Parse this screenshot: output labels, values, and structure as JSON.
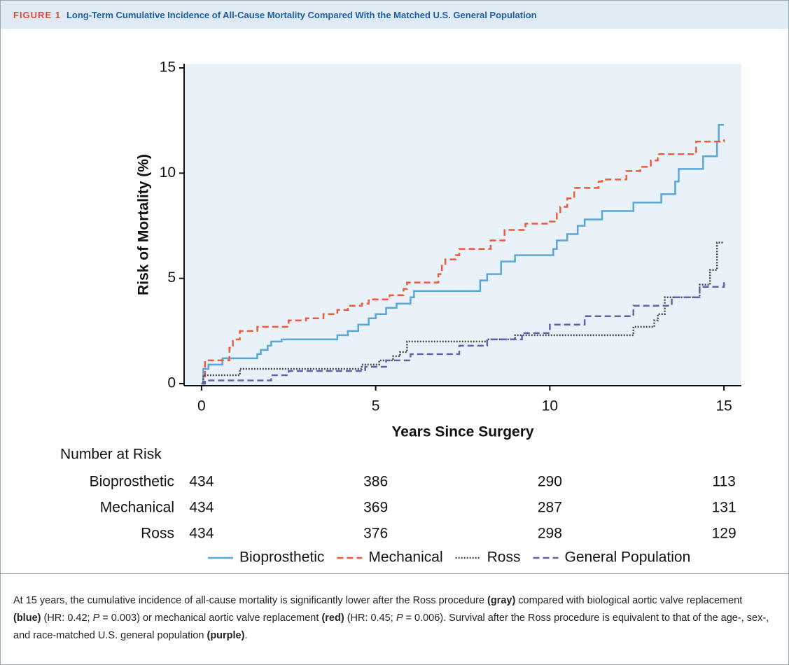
{
  "header": {
    "label": "FIGURE 1",
    "title": "Long-Term Cumulative Incidence of All-Cause Mortality Compared With the Matched U.S. General Population"
  },
  "chart_data": {
    "type": "step",
    "x_label": "Years Since Surgery",
    "y_label": "Risk of Mortality (%)",
    "xlim": [
      -0.5,
      15.5
    ],
    "ylim": [
      -0.1,
      15.2
    ],
    "xticks": [
      0,
      5,
      10,
      15
    ],
    "yticks": [
      0,
      5,
      10,
      15
    ],
    "background": "#e9f1f9",
    "series": [
      {
        "name": "Bioprosthetic",
        "color": "#5aa6d6",
        "line_style": "solid",
        "x": [
          0,
          0.05,
          0.2,
          0.6,
          1.6,
          1.7,
          1.9,
          2.0,
          2.3,
          3.9,
          4.2,
          4.5,
          4.8,
          5.0,
          5.3,
          5.6,
          6.0,
          6.1,
          8.0,
          8.2,
          8.6,
          9.0,
          10.1,
          10.2,
          10.5,
          10.8,
          11.0,
          11.5,
          12.4,
          13.2,
          13.6,
          13.7,
          14.4,
          14.8,
          14.85,
          15.0
        ],
        "values": [
          0,
          0.7,
          0.9,
          1.2,
          1.4,
          1.6,
          1.8,
          2.0,
          2.1,
          2.3,
          2.5,
          2.8,
          3.1,
          3.3,
          3.6,
          3.8,
          4.1,
          4.4,
          4.9,
          5.2,
          5.8,
          6.1,
          6.4,
          6.8,
          7.1,
          7.5,
          7.8,
          8.2,
          8.6,
          9.0,
          9.6,
          10.2,
          10.8,
          11.5,
          12.3,
          12.3
        ]
      },
      {
        "name": "Mechanical",
        "color": "#ef5a3c",
        "line_style": "dashed",
        "x": [
          0,
          0.1,
          0.8,
          0.9,
          1.1,
          1.6,
          2.5,
          3.0,
          3.5,
          3.9,
          4.2,
          4.6,
          4.8,
          5.4,
          5.8,
          5.9,
          6.8,
          6.9,
          7.0,
          7.3,
          7.4,
          8.3,
          8.7,
          9.3,
          10.0,
          10.2,
          10.3,
          10.5,
          10.7,
          11.4,
          11.5,
          12.2,
          12.6,
          12.9,
          13.1,
          14.2,
          15.0
        ],
        "values": [
          0,
          1.1,
          1.7,
          2.1,
          2.5,
          2.7,
          3.0,
          3.1,
          3.3,
          3.5,
          3.7,
          3.8,
          4.0,
          4.2,
          4.5,
          4.8,
          5.2,
          5.6,
          5.9,
          6.1,
          6.4,
          6.8,
          7.3,
          7.6,
          7.7,
          8.1,
          8.4,
          8.8,
          9.3,
          9.6,
          9.7,
          10.1,
          10.3,
          10.6,
          10.9,
          11.5,
          11.6
        ]
      },
      {
        "name": "Ross",
        "color": "#4a4a4a",
        "line_style": "dotted",
        "x": [
          0,
          0.05,
          1.1,
          4.6,
          5.1,
          5.5,
          5.7,
          5.9,
          8.2,
          9.0,
          12.4,
          13.0,
          13.1,
          13.3,
          14.3,
          14.6,
          14.8,
          15.0
        ],
        "values": [
          0,
          0.4,
          0.7,
          0.9,
          1.1,
          1.3,
          1.5,
          2.0,
          2.1,
          2.3,
          2.7,
          3.0,
          3.3,
          4.1,
          4.7,
          5.4,
          6.7,
          6.7
        ]
      },
      {
        "name": "General Population",
        "color": "#6a5fa8",
        "line_style": "dashed",
        "x": [
          0,
          0.1,
          2.0,
          2.5,
          4.7,
          5.3,
          6.0,
          7.4,
          8.2,
          9.2,
          10.0,
          11.0,
          12.4,
          13.5,
          14.3,
          15.0
        ],
        "values": [
          0,
          0.15,
          0.4,
          0.6,
          0.8,
          1.1,
          1.4,
          1.8,
          2.1,
          2.4,
          2.8,
          3.2,
          3.7,
          4.1,
          4.6,
          4.9
        ]
      }
    ]
  },
  "risk_table": {
    "title": "Number at Risk",
    "rows": [
      {
        "name": "Bioprosthetic",
        "values": [
          434,
          386,
          290,
          113
        ]
      },
      {
        "name": "Mechanical",
        "values": [
          434,
          369,
          287,
          131
        ]
      },
      {
        "name": "Ross",
        "values": [
          434,
          376,
          298,
          129
        ]
      }
    ]
  },
  "caption": [
    "At 15 years, the cumulative incidence of all-cause mortality is significantly lower after the Ross procedure ",
    "(gray)",
    " compared with biological aortic valve replacement ",
    "(blue)",
    " (HR: 0.42; ",
    "P",
    " = 0.003) or mechanical aortic valve replacement ",
    "(red)",
    " (HR: 0.45; ",
    "P",
    " = 0.006). Survival after the Ross procedure is equivalent to that of the age-, sex-, and race-matched U.S. general population ",
    "(purple)",
    "."
  ]
}
